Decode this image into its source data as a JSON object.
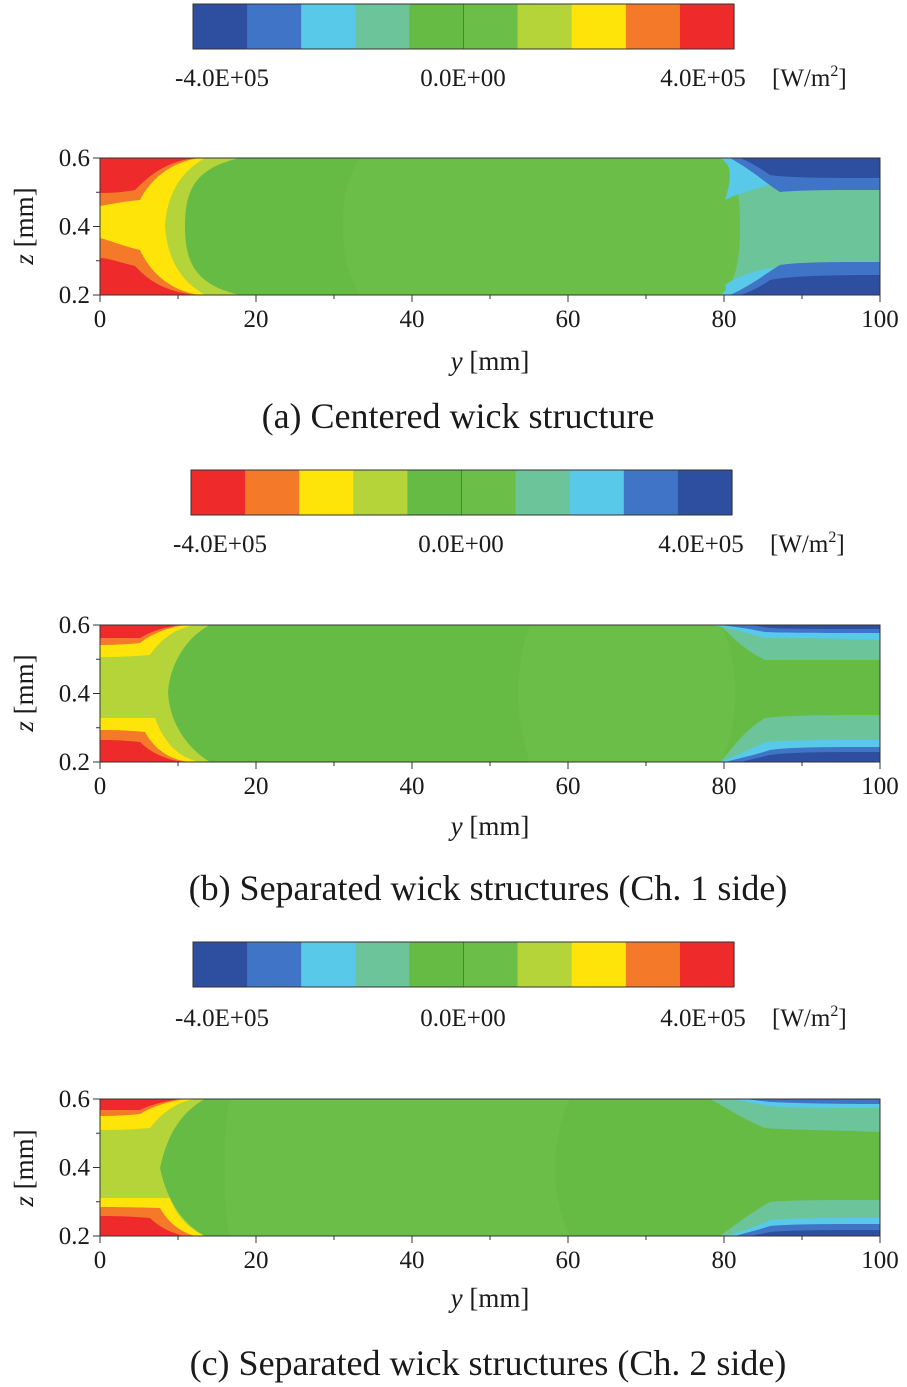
{
  "figure": {
    "title": ""
  },
  "chart_data": [
    {
      "type": "heatmap",
      "panel": "a",
      "caption": "(a) Centered wick structure",
      "quantity_unit": "[W/m",
      "unit_exp": "2",
      "unit_close": "]",
      "colorbar": {
        "reversed": false,
        "tick_labels": [
          "-4.0E+05",
          "0.0E+00",
          "4.0E+05"
        ],
        "colors": [
          "#2e4ea0",
          "#3f74c6",
          "#58c9e9",
          "#6cc59a",
          "#66bb45",
          "#6bbf48",
          "#b5d43a",
          "#ffe40a",
          "#f47a2a",
          "#ee2a2a"
        ]
      },
      "x_axis": {
        "var": "y",
        "unit": " [mm]",
        "range": [
          0,
          100
        ],
        "ticks": [
          "0",
          "20",
          "40",
          "60",
          "80",
          "100"
        ]
      },
      "y_axis": {
        "var": "z",
        "unit": " [mm]",
        "range": [
          0.2,
          0.6
        ],
        "ticks": [
          "0.2",
          "0.4",
          "0.6"
        ]
      },
      "field_description": "Near-zero heat flux over most of the channel; strong positive flux near y=0 (red/orange at walls, yellow at center) and strong negative flux near y=100 (dark blue at walls)."
    },
    {
      "type": "heatmap",
      "panel": "b",
      "caption": "(b) Separated wick structures (Ch. 1 side)",
      "quantity_unit": "[W/m",
      "unit_exp": "2",
      "unit_close": "]",
      "colorbar": {
        "reversed": true,
        "tick_labels": [
          "-4.0E+05",
          "0.0E+00",
          "4.0E+05"
        ],
        "colors": [
          "#ee2a2a",
          "#f47a2a",
          "#ffe40a",
          "#b5d43a",
          "#66bb45",
          "#6bbf48",
          "#6cc59a",
          "#58c9e9",
          "#3f74c6",
          "#2e4ea0"
        ]
      },
      "x_axis": {
        "var": "y",
        "unit": " [mm]",
        "range": [
          0,
          100
        ],
        "ticks": [
          "0",
          "20",
          "40",
          "60",
          "80",
          "100"
        ]
      },
      "y_axis": {
        "var": "z",
        "unit": " [mm]",
        "range": [
          0.2,
          0.6
        ],
        "ticks": [
          "0.2",
          "0.4",
          "0.6"
        ]
      },
      "field_description": "Near-zero flux across the channel; red/orange bands near walls at y=0 and dark blue bands near walls at y=100."
    },
    {
      "type": "heatmap",
      "panel": "c",
      "caption": "(c) Separated wick structures (Ch. 2 side)",
      "quantity_unit": "[W/m",
      "unit_exp": "2",
      "unit_close": "]",
      "colorbar": {
        "reversed": false,
        "tick_labels": [
          "-4.0E+05",
          "0.0E+00",
          "4.0E+05"
        ],
        "colors": [
          "#2e4ea0",
          "#3f74c6",
          "#58c9e9",
          "#6cc59a",
          "#66bb45",
          "#6bbf48",
          "#b5d43a",
          "#ffe40a",
          "#f47a2a",
          "#ee2a2a"
        ]
      },
      "x_axis": {
        "var": "y",
        "unit": " [mm]",
        "range": [
          0,
          100
        ],
        "ticks": [
          "0",
          "20",
          "40",
          "60",
          "80",
          "100"
        ]
      },
      "y_axis": {
        "var": "z",
        "unit": " [mm]",
        "range": [
          0.2,
          0.6
        ],
        "ticks": [
          "0.2",
          "0.4",
          "0.6"
        ]
      },
      "field_description": "Near-zero flux across the channel; red/orange bands near walls at y=0 and blue bands near walls at y=100."
    }
  ]
}
